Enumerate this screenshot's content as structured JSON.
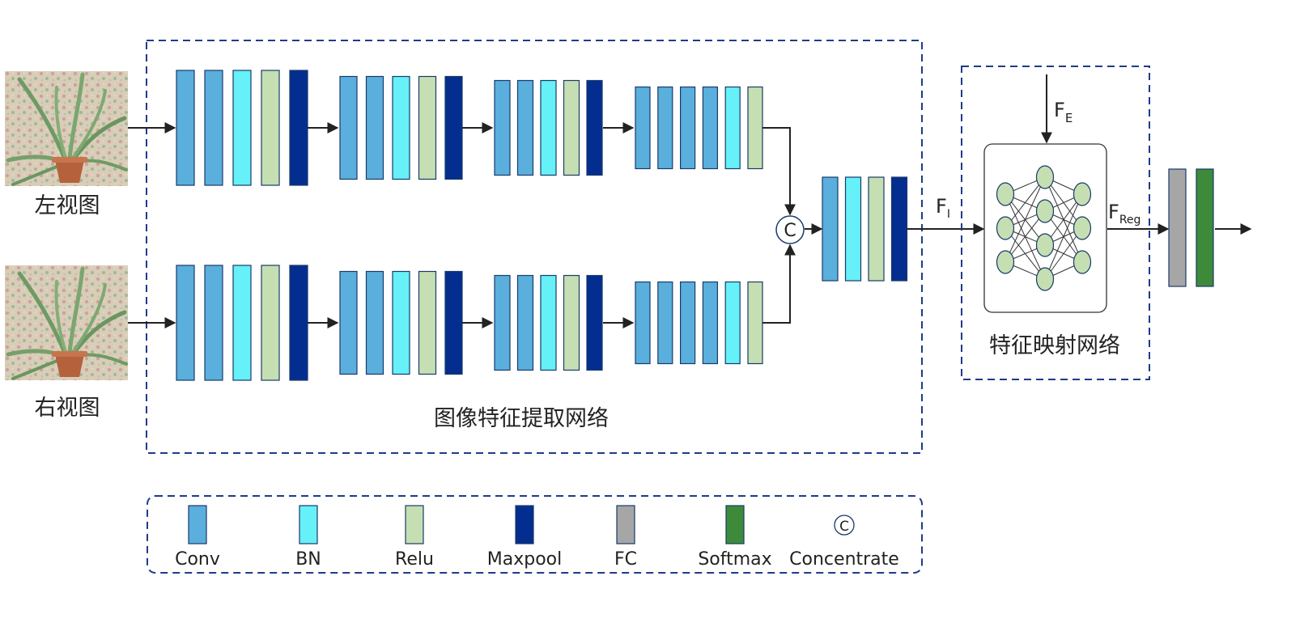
{
  "colors": {
    "conv": "#5aafdc",
    "bn": "#66f0f8",
    "relu": "#c5dfb3",
    "maxpool": "#032e90",
    "fc": "#a6a6a6",
    "softmax": "#3d8b3a",
    "dash": "#1f3b8a",
    "stroke": "#1a3a6a",
    "arrow": "#222222"
  },
  "inputs": {
    "left_label": "左视图",
    "right_label": "右视图"
  },
  "feature_extraction": {
    "title": "图像特征提取网络",
    "branch_blocks": [
      [
        "conv",
        "conv",
        "bn",
        "relu",
        "maxpool"
      ],
      [
        "conv",
        "conv",
        "bn",
        "relu",
        "maxpool"
      ],
      [
        "conv",
        "conv",
        "bn",
        "relu",
        "maxpool"
      ],
      [
        "conv",
        "conv",
        "conv",
        "conv",
        "bn",
        "relu"
      ]
    ],
    "merge_block": [
      "conv",
      "bn",
      "relu",
      "maxpool"
    ],
    "concat_symbol": "C"
  },
  "mapping": {
    "title": "特征映射网络",
    "input_main": "F",
    "input_sub": "E",
    "nn_layers": [
      3,
      4,
      3
    ]
  },
  "signals": {
    "fi_main": "F",
    "fi_sub": "I",
    "freg_main": "F",
    "freg_sub": "Reg"
  },
  "legend": [
    {
      "key": "conv",
      "label": "Conv"
    },
    {
      "key": "bn",
      "label": "BN"
    },
    {
      "key": "relu",
      "label": "Relu"
    },
    {
      "key": "maxpool",
      "label": "Maxpool"
    },
    {
      "key": "fc",
      "label": "FC"
    },
    {
      "key": "softmax",
      "label": "Softmax"
    },
    {
      "key": "concat",
      "label": "Concentrate",
      "symbol": "C"
    }
  ]
}
